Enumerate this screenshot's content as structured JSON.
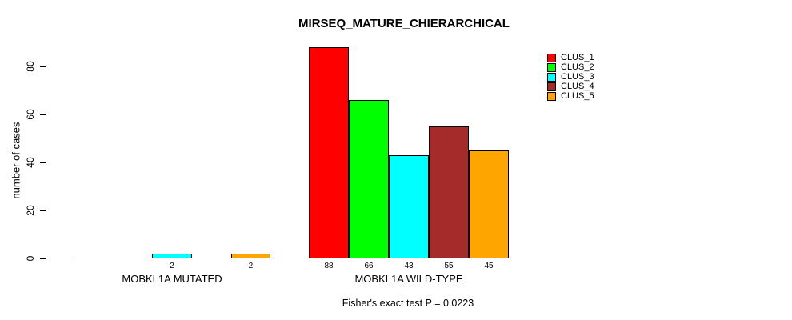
{
  "chart_data": {
    "type": "bar",
    "title": "MIRSEQ_MATURE_CHIERARCHICAL",
    "ylabel": "number of cases",
    "xlabel": "",
    "note": "Fisher's exact test P = 0.0223",
    "ylim": [
      0,
      80
    ],
    "yticks": [
      0,
      20,
      40,
      60,
      80
    ],
    "grid": false,
    "legend_position": "top-right",
    "categories": [
      "MOBKL1A MUTATED",
      "MOBKL1A WILD-TYPE"
    ],
    "series": [
      {
        "name": "CLUS_1",
        "color": "#FF0000",
        "values": [
          0,
          88
        ]
      },
      {
        "name": "CLUS_2",
        "color": "#00FF00",
        "values": [
          0,
          66
        ]
      },
      {
        "name": "CLUS_3",
        "color": "#00FFFF",
        "values": [
          2,
          43
        ]
      },
      {
        "name": "CLUS_4",
        "color": "#A52A2A",
        "values": [
          0,
          55
        ]
      },
      {
        "name": "CLUS_5",
        "color": "#FFA500",
        "values": [
          2,
          45
        ]
      }
    ],
    "bar_value_labels_shown_for_nonzero_only": true,
    "axis_color": "#000000",
    "bar_border_color": "#000000",
    "background_color": "#FFFFFF"
  }
}
